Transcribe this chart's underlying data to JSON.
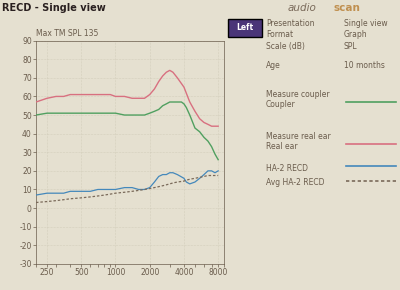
{
  "title": "RECD - Single view",
  "subtitle": "Max TM SPL 135",
  "background_color": "#e5e0d0",
  "plot_bg_color": "#e5e0d0",
  "xlim": [
    200,
    9000
  ],
  "ylim": [
    -30,
    90
  ],
  "yticks": [
    -30,
    -20,
    -10,
    0,
    10,
    20,
    30,
    40,
    50,
    60,
    70,
    80,
    90
  ],
  "xticks": [
    250,
    500,
    1000,
    2000,
    4000,
    8000
  ],
  "grid_color": "#c5c0ac",
  "text_color": "#6a5c4c",
  "real_ear_x": [
    200,
    250,
    300,
    350,
    400,
    500,
    600,
    700,
    800,
    900,
    1000,
    1200,
    1400,
    1600,
    1800,
    2000,
    2200,
    2400,
    2600,
    2800,
    3000,
    3200,
    3500,
    4000,
    4500,
    5000,
    5500,
    6000,
    6500,
    7000,
    7500,
    8000
  ],
  "real_ear_y": [
    57,
    59,
    60,
    60,
    61,
    61,
    61,
    61,
    61,
    61,
    60,
    60,
    59,
    59,
    59,
    61,
    64,
    68,
    71,
    73,
    74,
    73,
    70,
    65,
    57,
    52,
    48,
    46,
    45,
    44,
    44,
    44
  ],
  "coupler_x": [
    200,
    250,
    300,
    350,
    400,
    500,
    600,
    700,
    800,
    900,
    1000,
    1200,
    1400,
    1600,
    1800,
    2000,
    2200,
    2400,
    2600,
    2800,
    3000,
    3200,
    3500,
    3800,
    4000,
    4200,
    4500,
    5000,
    5500,
    6000,
    6500,
    7000,
    7500,
    8000
  ],
  "coupler_y": [
    50,
    51,
    51,
    51,
    51,
    51,
    51,
    51,
    51,
    51,
    51,
    50,
    50,
    50,
    50,
    51,
    52,
    53,
    55,
    56,
    57,
    57,
    57,
    57,
    56,
    54,
    50,
    43,
    41,
    38,
    36,
    33,
    29,
    26
  ],
  "ha2_recd_x": [
    200,
    250,
    300,
    350,
    400,
    500,
    600,
    700,
    800,
    900,
    1000,
    1200,
    1400,
    1600,
    1800,
    2000,
    2200,
    2400,
    2600,
    2800,
    3000,
    3200,
    3500,
    4000,
    4200,
    4500,
    5000,
    5500,
    6000,
    6500,
    7000,
    7500,
    8000
  ],
  "ha2_recd_y": [
    7,
    8,
    8,
    8,
    9,
    9,
    9,
    10,
    10,
    10,
    10,
    11,
    11,
    10,
    10,
    11,
    14,
    17,
    18,
    18,
    19,
    19,
    18,
    16,
    14,
    13,
    14,
    16,
    18,
    20,
    20,
    19,
    20
  ],
  "avg_ha2_recd_x": [
    200,
    250,
    300,
    350,
    400,
    500,
    600,
    700,
    800,
    900,
    1000,
    1200,
    1400,
    1600,
    1800,
    2000,
    2200,
    2400,
    2600,
    2800,
    3000,
    3200,
    3500,
    4000,
    4200,
    4500,
    5000,
    5500,
    6000,
    6500,
    7000,
    7500,
    8000
  ],
  "avg_ha2_recd_y": [
    3,
    3.5,
    4,
    4.5,
    5,
    5.5,
    6,
    6.5,
    7,
    7.5,
    8,
    8.5,
    9,
    9.5,
    10,
    10.5,
    11,
    11.5,
    12,
    12.5,
    13,
    13.5,
    14,
    14.5,
    15,
    15.5,
    16,
    16.5,
    17,
    17.5,
    17.5,
    17.5,
    17.5
  ],
  "real_ear_color": "#d87080",
  "coupler_color": "#50a060",
  "ha2_recd_color": "#4488bb",
  "avg_ha2_recd_color": "#7a6a5a",
  "left_box_color": "#4a3578",
  "title_color": "#2a2020",
  "audioscan_audio_color": "#7a6a5a",
  "audioscan_scan_color": "#c09050"
}
